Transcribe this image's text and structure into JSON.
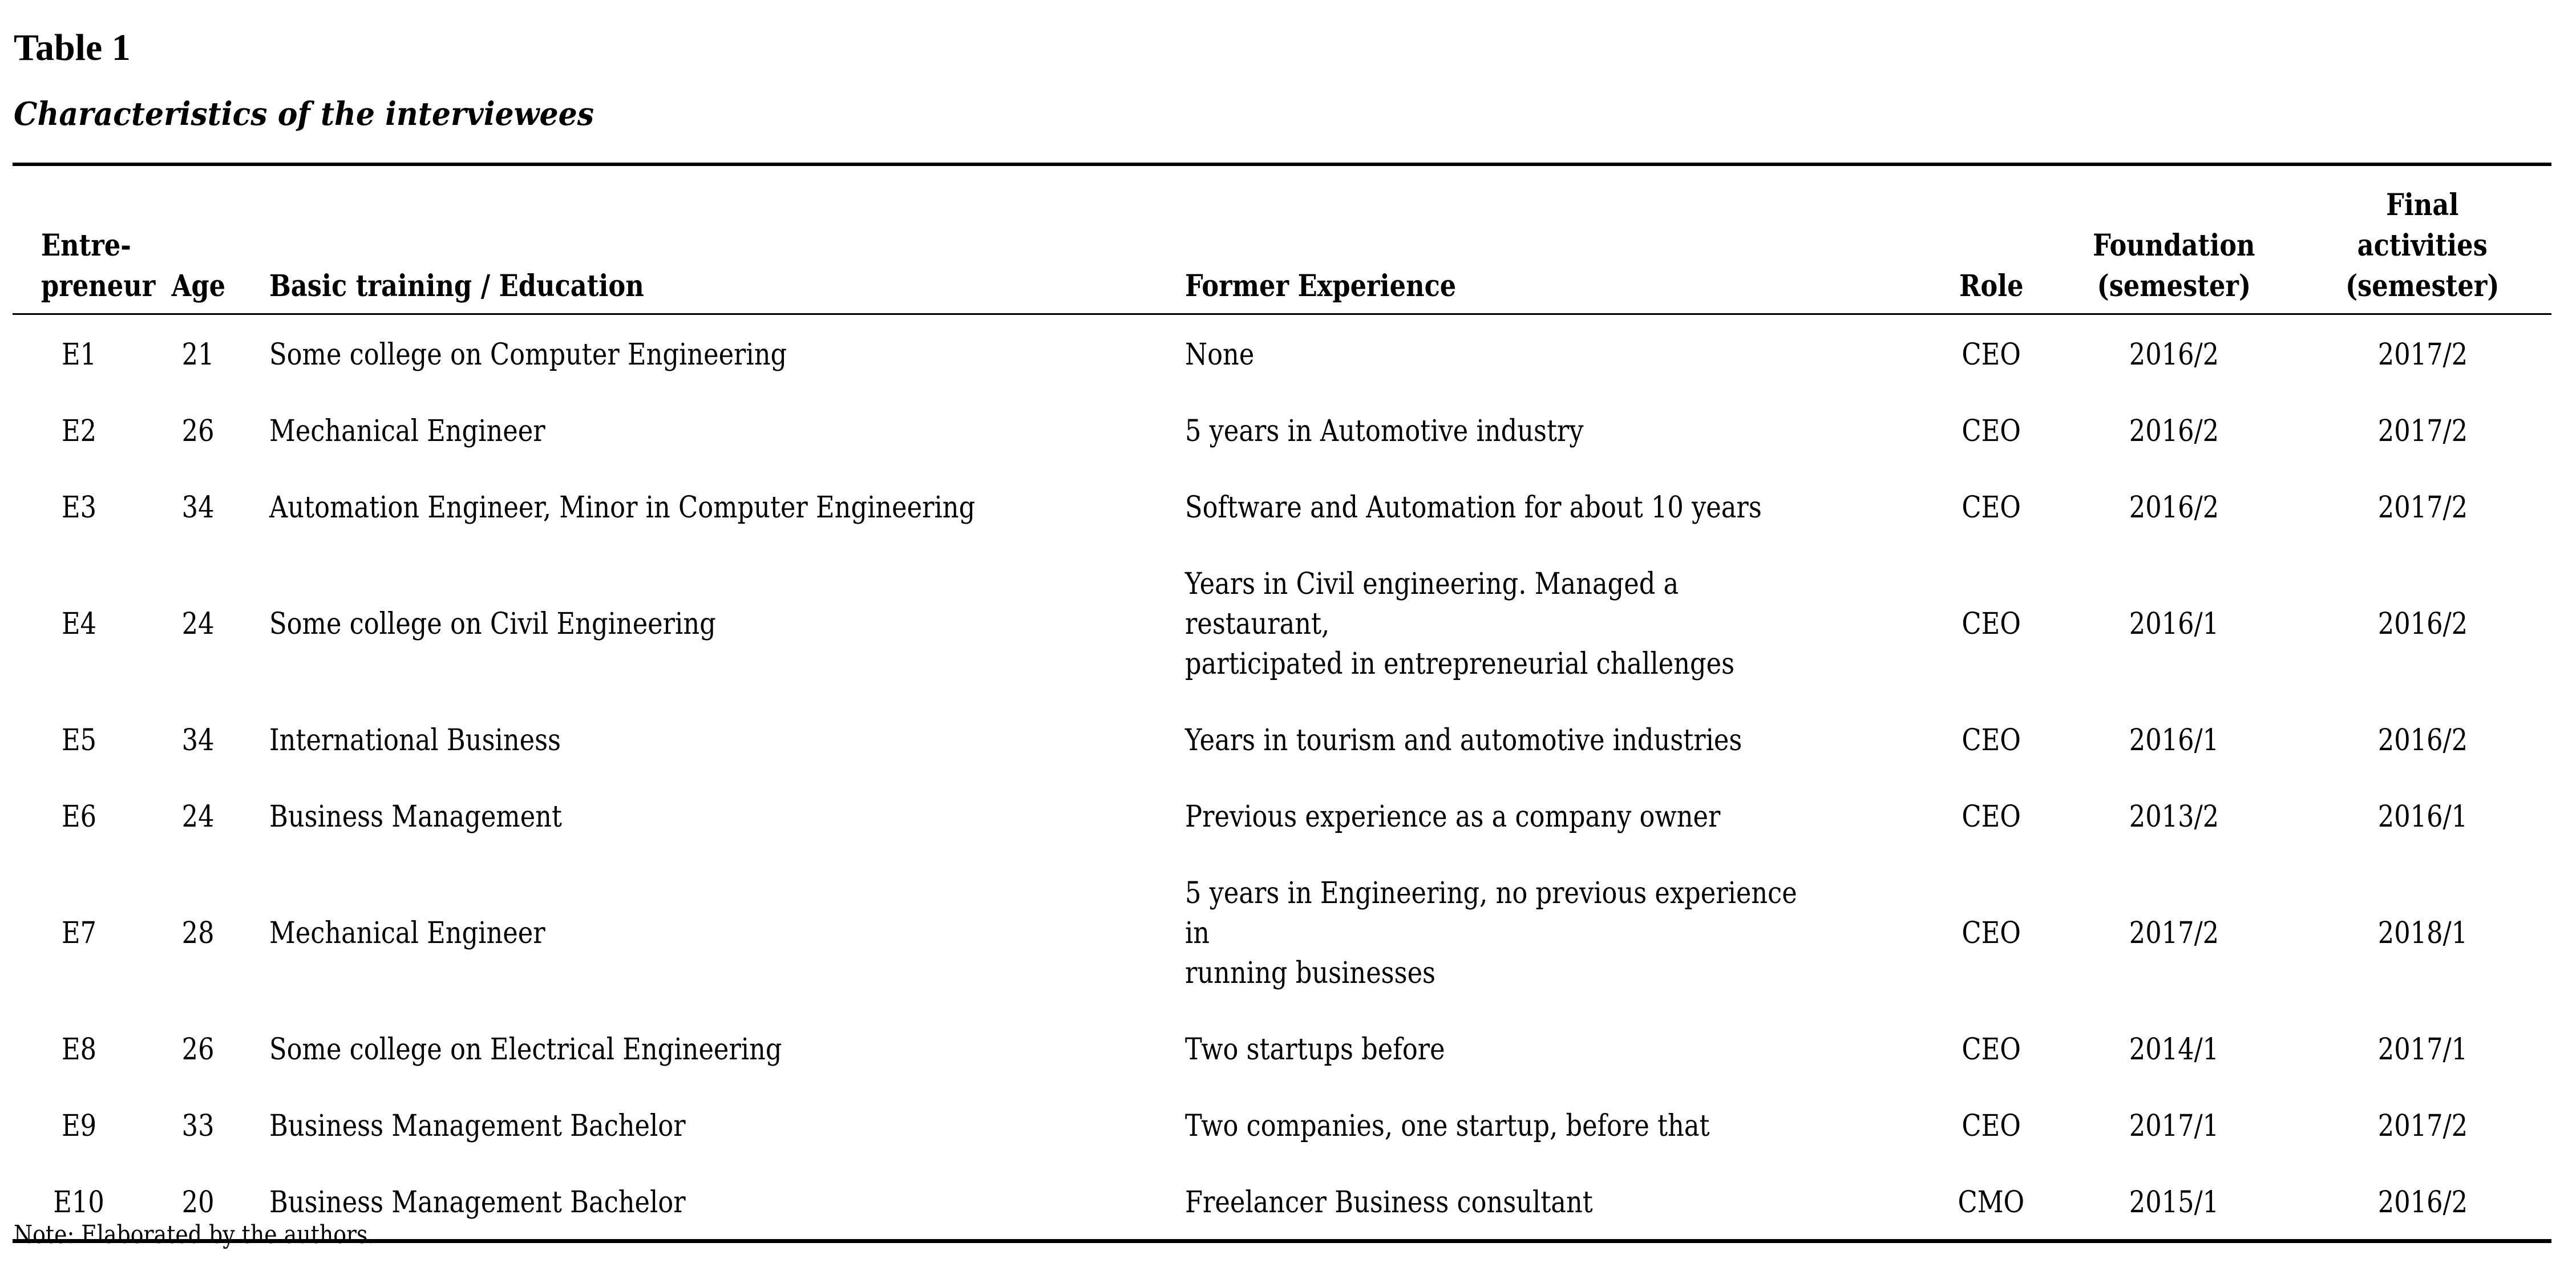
{
  "caption": {
    "number": "Table 1",
    "title": "Characteristics of the interviewees"
  },
  "table": {
    "headers": [
      "Entre-\npreneur",
      "Age",
      "Basic training / Education",
      "Former Experience",
      "Role",
      "Foundation\n(semester)",
      "Final\nactivities\n(semester)"
    ],
    "rows": [
      [
        "E1",
        "21",
        "Some college on Computer Engineering",
        "None",
        "CEO",
        "2016/2",
        "2017/2"
      ],
      [
        "E2",
        "26",
        "Mechanical Engineer",
        "5 years in Automotive industry",
        "CEO",
        "2016/2",
        "2017/2"
      ],
      [
        "E3",
        "34",
        "Automation Engineer, Minor in Computer Engineering",
        "Software and Automation for about 10 years",
        "CEO",
        "2016/2",
        "2017/2"
      ],
      [
        "E4",
        "24",
        "Some college on Civil Engineering",
        "Years in Civil engineering. Managed a restaurant,\nparticipated in entrepreneurial challenges",
        "CEO",
        "2016/1",
        "2016/2"
      ],
      [
        "E5",
        "34",
        "International Business",
        "Years in tourism and automotive industries",
        "CEO",
        "2016/1",
        "2016/2"
      ],
      [
        "E6",
        "24",
        "Business Management",
        "Previous experience as a company owner",
        "CEO",
        "2013/2",
        "2016/1"
      ],
      [
        "E7",
        "28",
        "Mechanical Engineer",
        "5 years in Engineering, no previous experience in\nrunning businesses",
        "CEO",
        "2017/2",
        "2018/1"
      ],
      [
        "E8",
        "26",
        "Some college on Electrical Engineering",
        "Two startups before",
        "CEO",
        "2014/1",
        "2017/1"
      ],
      [
        "E9",
        "33",
        "Business Management Bachelor",
        "Two companies, one startup, before that",
        "CEO",
        "2017/1",
        "2017/2"
      ],
      [
        "E10",
        "20",
        "Business Management Bachelor",
        "Freelancer Business consultant",
        "CMO",
        "2015/1",
        "2016/2"
      ]
    ]
  },
  "note": "Note: Elaborated by the authors."
}
